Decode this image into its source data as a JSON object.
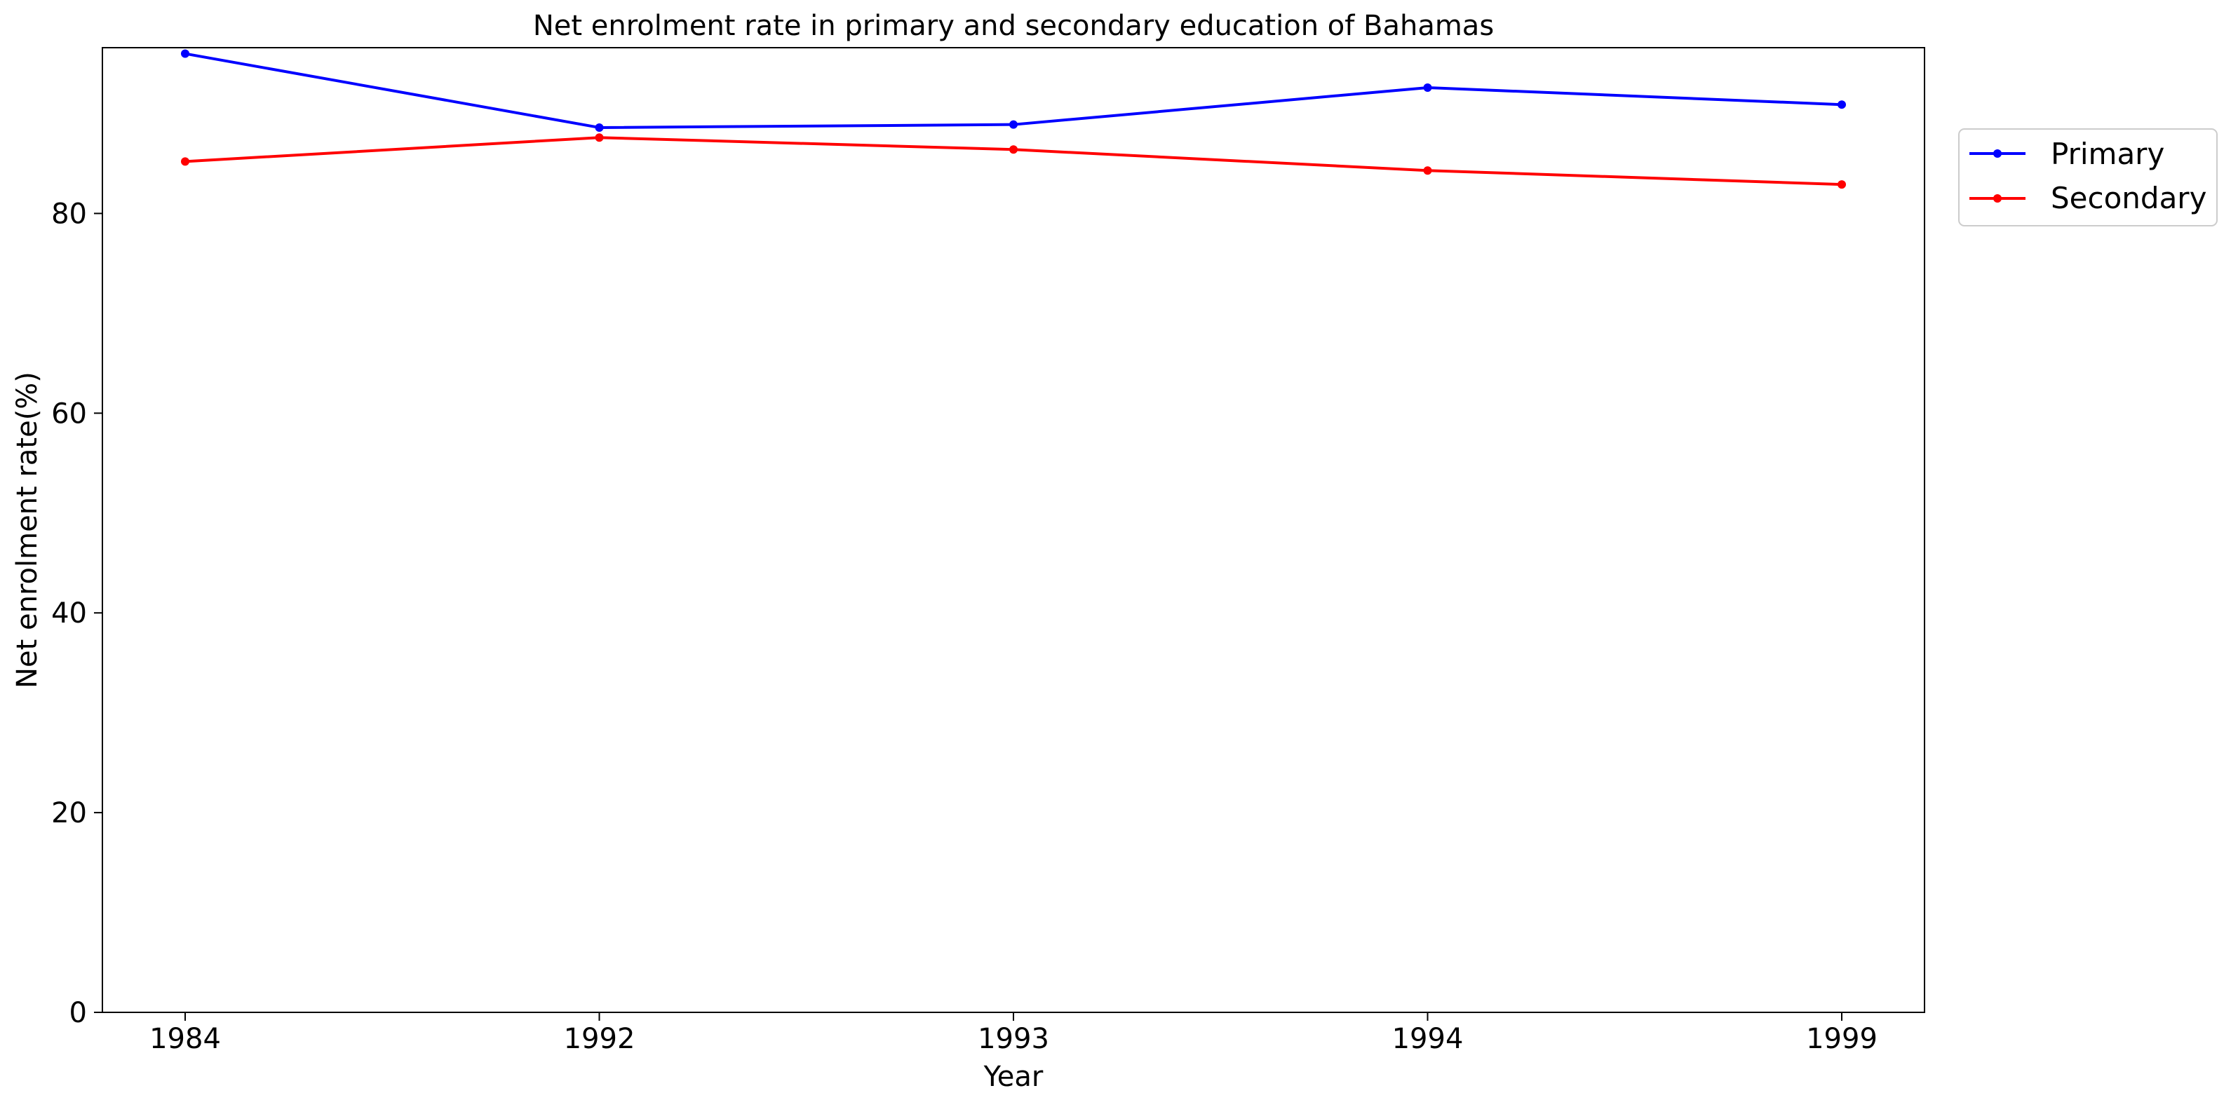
{
  "chart_data": {
    "type": "line",
    "title": "Net enrolment rate in primary and secondary education of Bahamas",
    "xlabel": "Year",
    "ylabel": "Net enrolment rate(%)",
    "categories": [
      "1984",
      "1992",
      "1993",
      "1994",
      "1999"
    ],
    "ylim": [
      0,
      96.6
    ],
    "yticks": [
      0,
      20,
      40,
      60,
      80
    ],
    "grid": false,
    "legend_position": "top-right, outside plot",
    "series": [
      {
        "name": "Primary",
        "color": "#0000ff",
        "marker": "circle",
        "values": [
          96.0,
          88.6,
          88.9,
          92.6,
          90.9
        ]
      },
      {
        "name": "Secondary",
        "color": "#ff0000",
        "marker": "circle",
        "values": [
          85.2,
          87.6,
          86.4,
          84.3,
          82.9
        ]
      }
    ]
  }
}
